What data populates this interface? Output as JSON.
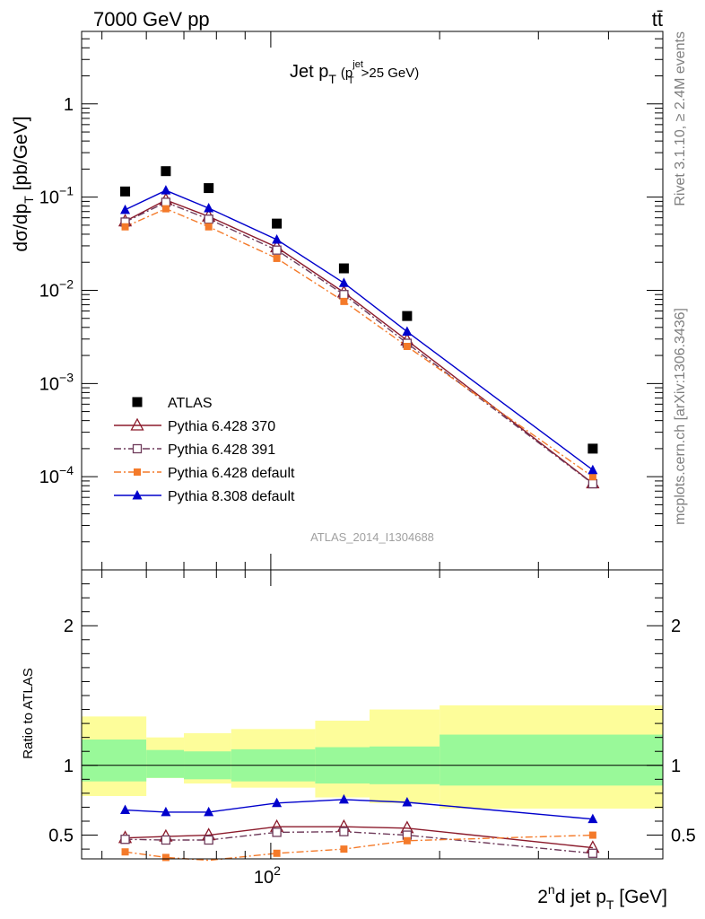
{
  "header": {
    "left_label": "7000 GeV pp",
    "right_label": "tt̄"
  },
  "side_labels": {
    "rivet": "Rivet 3.1.10, ≥ 2.4M events",
    "mcplots": "mcplots.cern.ch [arXiv:1306.3436]"
  },
  "plot_title": {
    "main": "Jet p",
    "main_sub": "T",
    "cut_open": "(p",
    "cut_sup": "jet",
    "cut_sub": "T",
    "cut_close": ">25 GeV)"
  },
  "analysis_id": "ATLAS_2014_I1304688",
  "axes": {
    "ylabel_main": "dσ/dp",
    "ylabel_sub": "T",
    "ylabel_unit": " [pb/GeV]",
    "ylabel_ratio": "Ratio to ATLAS",
    "xlabel_sup": "n",
    "xlabel_pre": "2",
    "xlabel_mid": "d jet p",
    "xlabel_sub": "T",
    "xlabel_unit": " [GeV]"
  },
  "colors": {
    "atlas": "#000000",
    "p370": "#8b1a2b",
    "p391": "#6e3a5a",
    "p6def": "#f47a2a",
    "p8def": "#0000cc",
    "band_green": "#99f999",
    "band_yellow": "#fdfd9a"
  },
  "chart_data": {
    "type": "scatter",
    "x_scale": "log",
    "y_scale": "log",
    "xlim": [
      46,
      500
    ],
    "ylim": [
      1e-05,
      6
    ],
    "yticks_major": [
      {
        "value": 0.0001,
        "label": "10",
        "exp": "−4"
      },
      {
        "value": 0.001,
        "label": "10",
        "exp": "−3"
      },
      {
        "value": 0.01,
        "label": "10",
        "exp": "−2"
      },
      {
        "value": 0.1,
        "label": "10",
        "exp": "−1"
      },
      {
        "value": 1,
        "label": "1",
        "exp": ""
      }
    ],
    "xtick_labels": [
      {
        "value": 100,
        "label": "10",
        "exp": "2"
      }
    ],
    "legend_position": "bottom-left",
    "series": [
      {
        "name": "ATLAS",
        "key": "atlas",
        "marker": "square-filled",
        "line": "none",
        "x": [
          55,
          65,
          77.5,
          102.5,
          135,
          175,
          375
        ],
        "y": [
          0.115,
          0.19,
          0.125,
          0.052,
          0.0172,
          0.0053,
          0.0002
        ]
      },
      {
        "name": "Pythia 6.428 370",
        "key": "p370",
        "marker": "triangle-open",
        "line": "solid",
        "x": [
          55,
          65,
          77.5,
          102.5,
          135,
          175,
          375
        ],
        "y": [
          0.055,
          0.093,
          0.062,
          0.029,
          0.0095,
          0.0029,
          8.5e-05
        ]
      },
      {
        "name": "Pythia 6.428 391",
        "key": "p391",
        "marker": "square-open",
        "line": "dashdot",
        "x": [
          55,
          65,
          77.5,
          102.5,
          135,
          175,
          375
        ],
        "y": [
          0.054,
          0.088,
          0.058,
          0.027,
          0.009,
          0.0027,
          8.4e-05
        ]
      },
      {
        "name": "Pythia 6.428 default",
        "key": "p6def",
        "marker": "square-filled-small",
        "line": "dashdot",
        "x": [
          55,
          65,
          77.5,
          102.5,
          135,
          175,
          375
        ],
        "y": [
          0.048,
          0.075,
          0.048,
          0.022,
          0.0076,
          0.0025,
          0.0001
        ]
      },
      {
        "name": "Pythia 8.308 default",
        "key": "p8def",
        "marker": "triangle-filled",
        "line": "solid",
        "x": [
          55,
          65,
          77.5,
          102.5,
          135,
          175,
          375
        ],
        "y": [
          0.073,
          0.118,
          0.076,
          0.035,
          0.012,
          0.0036,
          0.000118
        ]
      }
    ],
    "ratio": {
      "ylim": [
        0.33,
        2.4
      ],
      "yticks": [
        0.5,
        1,
        2
      ],
      "reference": 1,
      "bins": [
        {
          "lo": 46,
          "hi": 60,
          "green": [
            0.885,
            1.185
          ],
          "yellow": [
            0.78,
            1.35
          ]
        },
        {
          "lo": 60,
          "hi": 70,
          "green": [
            0.91,
            1.11
          ],
          "yellow": [
            0.91,
            1.2
          ]
        },
        {
          "lo": 70,
          "hi": 85,
          "green": [
            0.9,
            1.1
          ],
          "yellow": [
            0.87,
            1.23
          ]
        },
        {
          "lo": 85,
          "hi": 120,
          "green": [
            0.885,
            1.115
          ],
          "yellow": [
            0.84,
            1.26
          ]
        },
        {
          "lo": 120,
          "hi": 150,
          "green": [
            0.87,
            1.13
          ],
          "yellow": [
            0.77,
            1.32
          ]
        },
        {
          "lo": 150,
          "hi": 200,
          "green": [
            0.865,
            1.135
          ],
          "yellow": [
            0.73,
            1.4
          ]
        },
        {
          "lo": 200,
          "hi": 500,
          "green": [
            0.855,
            1.22
          ],
          "yellow": [
            0.69,
            1.43
          ]
        }
      ],
      "series": [
        {
          "key": "p370",
          "y": [
            0.48,
            0.49,
            0.5,
            0.56,
            0.56,
            0.55,
            0.41
          ]
        },
        {
          "key": "p391",
          "y": [
            0.47,
            0.465,
            0.465,
            0.52,
            0.525,
            0.5,
            0.37
          ]
        },
        {
          "key": "p6def",
          "y": [
            0.38,
            0.34,
            0.32,
            0.37,
            0.4,
            0.46,
            0.5
          ]
        },
        {
          "key": "p8def",
          "y": [
            0.68,
            0.665,
            0.665,
            0.73,
            0.755,
            0.735,
            0.615
          ]
        }
      ]
    }
  }
}
